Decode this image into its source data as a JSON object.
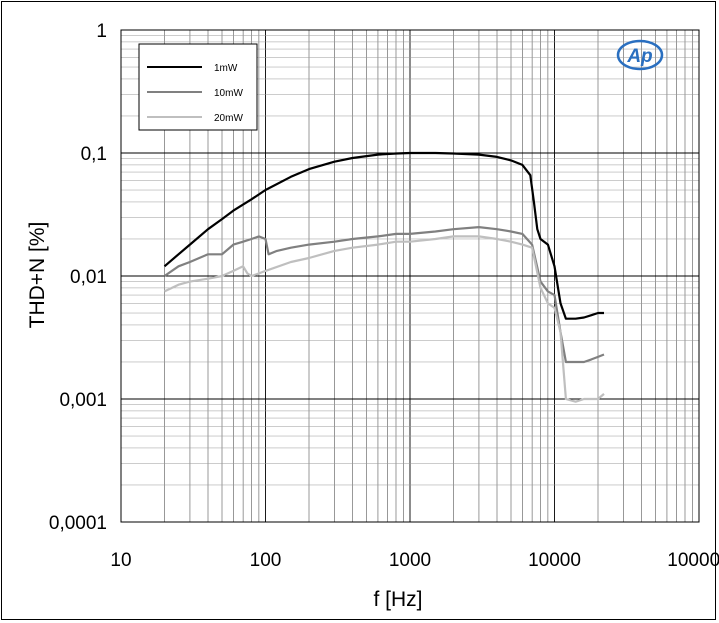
{
  "chart_data": {
    "type": "line",
    "title": "",
    "xlabel": "f [Hz]",
    "ylabel": "THD+N [%]",
    "xscale": "log",
    "yscale": "log",
    "xlim": [
      10,
      100000
    ],
    "ylim": [
      0.0001,
      1
    ],
    "x_tick_labels": [
      "10",
      "100",
      "1000",
      "10000",
      "100000"
    ],
    "y_tick_labels": [
      "0,0001",
      "0,001",
      "0,01",
      "0,1",
      "1"
    ],
    "grid": true,
    "legend_position": "top-left",
    "logo": "AP",
    "series": [
      {
        "name": "1mW",
        "color": "#000000",
        "x": [
          20,
          25,
          30,
          40,
          50,
          60,
          80,
          100,
          150,
          200,
          300,
          400,
          600,
          800,
          1000,
          1500,
          2000,
          3000,
          4000,
          5000,
          6000,
          6800,
          7200,
          7600,
          8000,
          9000,
          10000,
          11000,
          12000,
          14000,
          16000,
          18000,
          20000,
          22000
        ],
        "y": [
          0.012,
          0.015,
          0.018,
          0.024,
          0.029,
          0.034,
          0.042,
          0.05,
          0.064,
          0.074,
          0.085,
          0.091,
          0.097,
          0.099,
          0.1,
          0.1,
          0.099,
          0.097,
          0.093,
          0.087,
          0.08,
          0.066,
          0.04,
          0.024,
          0.02,
          0.018,
          0.012,
          0.006,
          0.0045,
          0.0045,
          0.0046,
          0.0048,
          0.005,
          0.005
        ]
      },
      {
        "name": "10mW",
        "color": "#808080",
        "x": [
          20,
          25,
          30,
          40,
          50,
          60,
          70,
          80,
          90,
          100,
          105,
          120,
          150,
          200,
          300,
          400,
          600,
          800,
          1000,
          1500,
          2000,
          3000,
          4000,
          5000,
          6000,
          7000,
          8000,
          9000,
          10000,
          11000,
          12000,
          14000,
          16000,
          18000,
          20000,
          22000
        ],
        "y": [
          0.01,
          0.012,
          0.013,
          0.015,
          0.015,
          0.018,
          0.019,
          0.02,
          0.021,
          0.02,
          0.015,
          0.016,
          0.017,
          0.018,
          0.019,
          0.02,
          0.021,
          0.022,
          0.022,
          0.023,
          0.024,
          0.025,
          0.024,
          0.023,
          0.022,
          0.018,
          0.009,
          0.0075,
          0.007,
          0.0035,
          0.002,
          0.002,
          0.002,
          0.0021,
          0.0022,
          0.0023
        ]
      },
      {
        "name": "20mW",
        "color": "#bfbfbf",
        "x": [
          20,
          25,
          30,
          40,
          50,
          60,
          70,
          75,
          80,
          90,
          100,
          150,
          200,
          300,
          400,
          600,
          800,
          1000,
          1500,
          2000,
          3000,
          4000,
          5000,
          6000,
          7000,
          8000,
          9000,
          10000,
          11000,
          12000,
          14000,
          16000,
          18000,
          20000,
          22000
        ],
        "y": [
          0.0075,
          0.0085,
          0.009,
          0.0095,
          0.01,
          0.011,
          0.012,
          0.0105,
          0.01,
          0.0105,
          0.011,
          0.013,
          0.014,
          0.016,
          0.017,
          0.018,
          0.019,
          0.019,
          0.02,
          0.021,
          0.021,
          0.02,
          0.019,
          0.018,
          0.017,
          0.008,
          0.006,
          0.0055,
          0.0035,
          0.001,
          0.00095,
          0.001,
          0.001,
          0.001,
          0.0011
        ]
      }
    ]
  }
}
